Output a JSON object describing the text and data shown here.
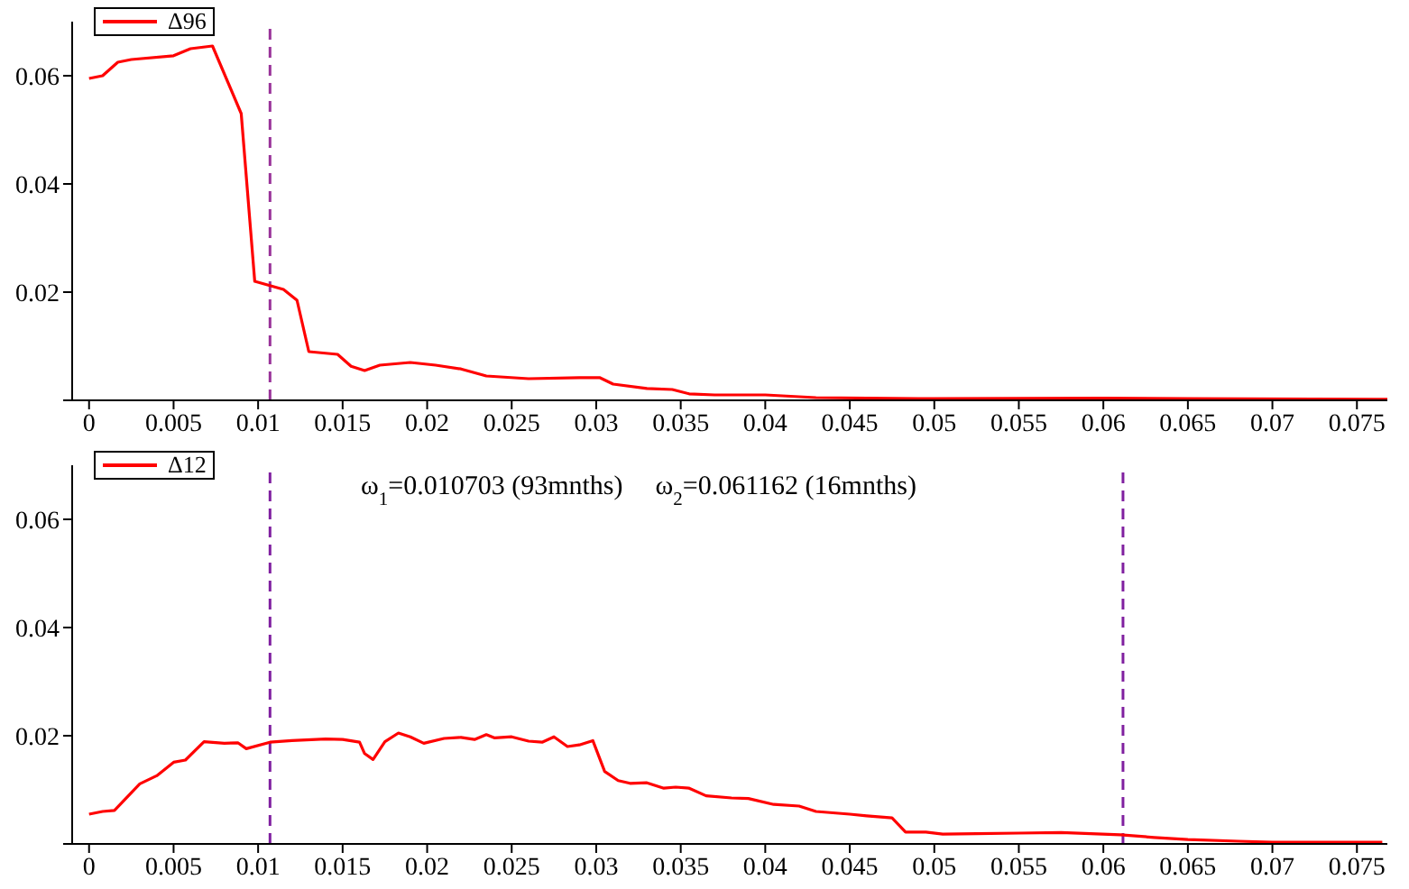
{
  "chart_data": [
    {
      "type": "line",
      "xlim": [
        -0.001,
        0.0768
      ],
      "ylim": [
        0,
        0.07
      ],
      "xticks": [
        0,
        0.005,
        0.01,
        0.015,
        0.02,
        0.025,
        0.03,
        0.035,
        0.04,
        0.045,
        0.05,
        0.055,
        0.06,
        0.065,
        0.07,
        0.075
      ],
      "yticks": [
        {
          "value": 0,
          "label": null
        },
        0.02,
        0.04,
        0.06
      ],
      "grid": false,
      "legend": "top left",
      "marker": "none",
      "line_style": "solid",
      "ref_lines": [
        {
          "axis": "x",
          "value": 0.010703,
          "color": "#993399",
          "line_style": "dashed"
        }
      ],
      "series": [
        {
          "name": "Δ96",
          "color": "#ff0000",
          "x": [
            0,
            0.0008,
            0.0017,
            0.0025,
            0.005,
            0.006,
            0.0073,
            0.009,
            0.0098,
            0.0115,
            0.0123,
            0.013,
            0.0147,
            0.0155,
            0.0163,
            0.0172,
            0.019,
            0.0205,
            0.022,
            0.0235,
            0.026,
            0.029,
            0.0302,
            0.031,
            0.033,
            0.0345,
            0.0355,
            0.037,
            0.04,
            0.043,
            0.05,
            0.06,
            0.065,
            0.0768
          ],
          "values": [
            0.0595,
            0.06,
            0.0625,
            0.063,
            0.0637,
            0.065,
            0.0655,
            0.053,
            0.022,
            0.0205,
            0.0185,
            0.009,
            0.0085,
            0.0063,
            0.0055,
            0.0065,
            0.007,
            0.0065,
            0.0058,
            0.0045,
            0.004,
            0.0042,
            0.0042,
            0.003,
            0.0022,
            0.002,
            0.0012,
            0.001,
            0.001,
            0.0005,
            0.0003,
            0.0004,
            0.0003,
            0.0002
          ]
        }
      ]
    },
    {
      "type": "line",
      "xlim": [
        -0.001,
        0.0768
      ],
      "ylim": [
        0,
        0.07
      ],
      "xticks": [
        0,
        0.005,
        0.01,
        0.015,
        0.02,
        0.025,
        0.03,
        0.035,
        0.04,
        0.045,
        0.05,
        0.055,
        0.06,
        0.065,
        0.07,
        0.075
      ],
      "yticks": [
        {
          "value": 0,
          "label": null
        },
        0.02,
        0.04,
        0.06
      ],
      "grid": false,
      "legend": "top left",
      "marker": "none",
      "line_style": "solid",
      "annotations": [
        "ω$_{1}$=0.010703 (93mnths)",
        "ω$_{2}$=0.061162 (16mnths)"
      ],
      "ref_lines": [
        {
          "axis": "x",
          "value": 0.010703,
          "color": "#8020a0",
          "line_style": "dashed"
        },
        {
          "axis": "x",
          "value": 0.061162,
          "color": "#8020a0",
          "line_style": "dashed"
        }
      ],
      "series": [
        {
          "name": "Δ12",
          "color": "#ff0000",
          "x": [
            0,
            0.0008,
            0.0015,
            0.003,
            0.004,
            0.005,
            0.0057,
            0.0068,
            0.008,
            0.0088,
            0.0093,
            0.0107,
            0.012,
            0.014,
            0.015,
            0.016,
            0.0163,
            0.0168,
            0.0175,
            0.0183,
            0.019,
            0.0198,
            0.021,
            0.022,
            0.0228,
            0.0235,
            0.024,
            0.025,
            0.026,
            0.0268,
            0.0275,
            0.0283,
            0.029,
            0.0298,
            0.0305,
            0.0313,
            0.032,
            0.033,
            0.034,
            0.0347,
            0.0355,
            0.0365,
            0.038,
            0.039,
            0.0405,
            0.042,
            0.043,
            0.045,
            0.046,
            0.0475,
            0.0483,
            0.0495,
            0.0505,
            0.0525,
            0.055,
            0.0575,
            0.061,
            0.063,
            0.065,
            0.068,
            0.07,
            0.0765
          ],
          "values": [
            0.0055,
            0.006,
            0.0062,
            0.0111,
            0.0126,
            0.0151,
            0.0155,
            0.0189,
            0.0186,
            0.0187,
            0.0176,
            0.0188,
            0.0191,
            0.0194,
            0.0193,
            0.0188,
            0.0167,
            0.0156,
            0.0189,
            0.0205,
            0.0198,
            0.0186,
            0.0195,
            0.0197,
            0.0193,
            0.0202,
            0.0196,
            0.0198,
            0.019,
            0.0188,
            0.0198,
            0.018,
            0.0183,
            0.0191,
            0.0134,
            0.0117,
            0.0112,
            0.0113,
            0.0103,
            0.0105,
            0.0103,
            0.0089,
            0.0085,
            0.0084,
            0.0073,
            0.007,
            0.006,
            0.0055,
            0.0052,
            0.0048,
            0.0022,
            0.0022,
            0.0018,
            0.0019,
            0.002,
            0.0021,
            0.0017,
            0.0012,
            0.0008,
            0.0005,
            0.0003,
            0.0003
          ]
        }
      ]
    }
  ]
}
